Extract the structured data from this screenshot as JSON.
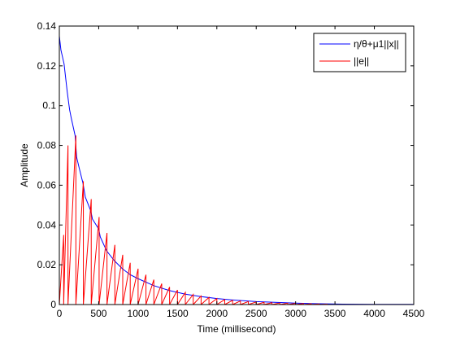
{
  "chart_data": {
    "type": "line",
    "title": "",
    "xlabel": "Time (millisecond)",
    "ylabel": "Amplitude",
    "xlim": [
      0,
      4500
    ],
    "ylim": [
      0,
      0.14
    ],
    "xticks": [
      0,
      500,
      1000,
      1500,
      2000,
      2500,
      3000,
      3500,
      4000,
      4500
    ],
    "xtick_labels": [
      "0",
      "500",
      "1000",
      "1500",
      "2000",
      "2500",
      "3000",
      "3500",
      "4000",
      "4500"
    ],
    "yticks": [
      0,
      0.02,
      0.04,
      0.06,
      0.08,
      0.1,
      0.12,
      0.14
    ],
    "ytick_labels": [
      "0",
      "0.02",
      "0.04",
      "0.06",
      "0.08",
      "0.1",
      "0.12",
      "0.14"
    ],
    "grid": false,
    "legend_position": "top-right",
    "series": [
      {
        "name": "η/θ+μ1||x||",
        "color": "#0000ff",
        "style": "stepped-decaying",
        "x": [
          0,
          20,
          60,
          100,
          130,
          150,
          200,
          220,
          250,
          300,
          330,
          400,
          420,
          500,
          520,
          600,
          700,
          800,
          900,
          1000,
          1200,
          1400,
          1600,
          1800,
          2000,
          2200,
          2500,
          2800,
          3000,
          3300,
          3600,
          4000,
          4500
        ],
        "y": [
          0.135,
          0.128,
          0.121,
          0.107,
          0.098,
          0.094,
          0.085,
          0.074,
          0.069,
          0.061,
          0.054,
          0.047,
          0.043,
          0.038,
          0.034,
          0.027,
          0.022,
          0.018,
          0.015,
          0.013,
          0.0095,
          0.007,
          0.0052,
          0.004,
          0.003,
          0.0023,
          0.0015,
          0.001,
          0.0007,
          0.0004,
          0.0002,
          0.0001,
          0.0001
        ]
      },
      {
        "name": "||e||",
        "color": "#ff0000",
        "style": "sawtooth",
        "trigger_times": [
          0,
          55,
          110,
          210,
          305,
          405,
          505,
          605,
          705,
          805,
          900,
          1000,
          1100,
          1200,
          1300,
          1400,
          1500,
          1600,
          1700,
          1800,
          1900,
          2000,
          2100,
          2200,
          2300,
          2400,
          2500,
          2600,
          2700,
          2800,
          2900,
          3000,
          3100,
          3200,
          3300
        ],
        "peak_values": [
          0.035,
          0.08,
          0.085,
          0.062,
          0.053,
          0.044,
          0.036,
          0.03,
          0.025,
          0.021,
          0.018,
          0.015,
          0.0125,
          0.0105,
          0.0088,
          0.0073,
          0.0061,
          0.0051,
          0.0043,
          0.0036,
          0.003,
          0.0025,
          0.0021,
          0.0018,
          0.0015,
          0.0013,
          0.0011,
          0.0009,
          0.0008,
          0.0007,
          0.0006,
          0.0005,
          0.0004,
          0.0003,
          0.0002
        ]
      }
    ]
  }
}
